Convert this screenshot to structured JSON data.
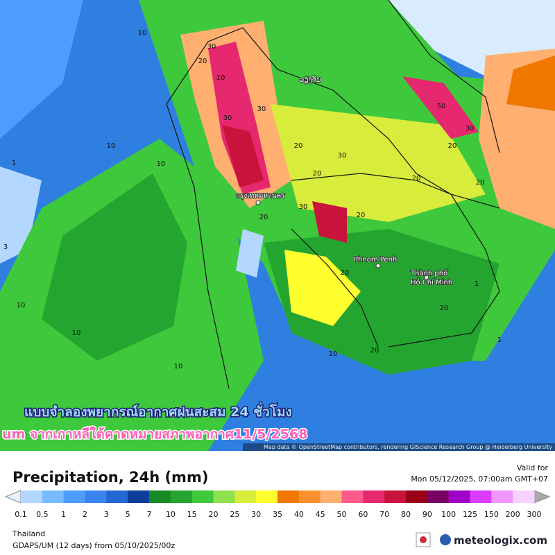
{
  "overlay": {
    "line1": "แบบจำลองพยากรณ์อากาศฝนสะสม 24 ชั่วโมง",
    "line2": "um จากเกาหลีใต้คาดหมายสภาพอากาศ11/5/2568"
  },
  "attribution": "Map data © OpenStreetMap contributors, rendering GIScience Research Group @ Heidelberg University",
  "cities": [
    "ວຽງຈັນ",
    "กรุงเทพมหานคร",
    "Phnom Penh",
    "Thành phố",
    "Hồ Chí Minh"
  ],
  "contour_labels": [
    10,
    30,
    20,
    10,
    30,
    30,
    20,
    30,
    20,
    20,
    20,
    30,
    50,
    20,
    20,
    10,
    10,
    10,
    10,
    20,
    30,
    20,
    20,
    1,
    1,
    1,
    10,
    20,
    3,
    10
  ],
  "header": {
    "title": "Precipitation, 24h (mm)",
    "valid_label": "Valid for",
    "valid_time": "Mon 05/12/2025, 07:00am GMT+07"
  },
  "legend": {
    "labels": [
      0.1,
      0.5,
      1,
      2,
      3,
      5,
      7,
      10,
      15,
      20,
      25,
      30,
      35,
      40,
      45,
      50,
      60,
      70,
      80,
      90,
      100,
      125,
      150,
      200,
      300
    ],
    "colors": [
      "#b4d7ff",
      "#78bbff",
      "#4f9cff",
      "#3a84f2",
      "#2466d2",
      "#0d3e9c",
      "#168a24",
      "#24a52f",
      "#3ec83c",
      "#8fe04e",
      "#d8ec3c",
      "#ffff30",
      "#f07800",
      "#ff9030",
      "#ffb070",
      "#ff5a8c",
      "#e6286e",
      "#c8143c",
      "#9a0018",
      "#780064",
      "#a000c8",
      "#dc3cff",
      "#f096ff",
      "#f5d2ff"
    ],
    "low_color": "#e4f2ff",
    "high_color": "#a8a8a8"
  },
  "footer": {
    "region": "Thailand",
    "model": "GDAPS/UM (12 days) from 05/10/2025/00z",
    "brand": "meteologix.com"
  }
}
